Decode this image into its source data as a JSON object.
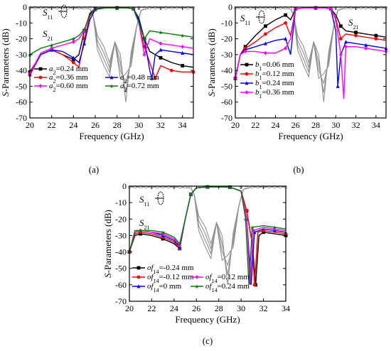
{
  "chart_data": [
    {
      "type": "line",
      "panel_label": "(a)",
      "xlabel": "Frequency (GHz)",
      "ylabel": "S-Parameters (dB)",
      "xlim": [
        20,
        35
      ],
      "ylim": [
        -70,
        0
      ],
      "xticks": [
        "20",
        "22",
        "24",
        "26",
        "28",
        "30",
        "32",
        "34"
      ],
      "yticks": [
        "0",
        "-10",
        "-20",
        "-30",
        "-40",
        "-50",
        "-60",
        "-70"
      ],
      "annotations": [
        "S11",
        "S21"
      ],
      "legend": [
        "a2=0.24 mm",
        "a2=0.36 mm",
        "a2=0.48 mm",
        "a2=0.60 mm",
        "a2=0.72 mm"
      ],
      "series": [
        {
          "name": "a2=0.24 mm",
          "color": "#000000",
          "marker": "square",
          "x": [
            20,
            21,
            22,
            23,
            24,
            24.5,
            25,
            25.5,
            26,
            27,
            28,
            29,
            29.5,
            30,
            30.5,
            31,
            32,
            33,
            34,
            35
          ],
          "y": [
            -41,
            -30,
            -27,
            -30,
            -33,
            -30,
            -15,
            -4,
            -0.8,
            -0.5,
            -0.5,
            -0.6,
            -1,
            -7,
            -20,
            -28,
            -32,
            -35,
            -37,
            -38
          ]
        },
        {
          "name": "a2=0.36 mm",
          "color": "#ff0000",
          "marker": "circle",
          "x": [
            20,
            21,
            22,
            23,
            24,
            24.5,
            25,
            25.5,
            26,
            27,
            28,
            29,
            29.5,
            30,
            30.5,
            31,
            31.5,
            32,
            33,
            34,
            35
          ],
          "y": [
            -43,
            -30,
            -27,
            -30,
            -35,
            -38,
            -20,
            -6,
            -1,
            -0.5,
            -0.5,
            -0.6,
            -1,
            -10,
            -25,
            -35,
            -45,
            -37,
            -40,
            -41,
            -41
          ]
        },
        {
          "name": "a2=0.48 mm",
          "color": "#0000ff",
          "marker": "triangle",
          "x": [
            20,
            21,
            22,
            23,
            24,
            24.5,
            25,
            25.5,
            26,
            27,
            28,
            29,
            29.5,
            30,
            30.5,
            31,
            31.2,
            31.5,
            32,
            33,
            34,
            35
          ],
          "y": [
            -42,
            -30,
            -27,
            -28,
            -32,
            -35,
            -23,
            -8,
            -1.5,
            -0.5,
            -0.5,
            -0.6,
            -1,
            -8,
            -20,
            -40,
            -45,
            -30,
            -27,
            -28,
            -29,
            -30
          ]
        },
        {
          "name": "a2=0.60 mm",
          "color": "#ff00ff",
          "marker": "diamond",
          "x": [
            20,
            21,
            22,
            23,
            24,
            24.5,
            25,
            25.5,
            26,
            27,
            28,
            29,
            29.5,
            30,
            30.5,
            31,
            32,
            33,
            34,
            35
          ],
          "y": [
            -42,
            -29,
            -26,
            -24,
            -22,
            -20,
            -15,
            -5,
            -1,
            -0.5,
            -0.5,
            -0.6,
            -1,
            -10,
            -30,
            -20,
            -23,
            -24,
            -25,
            -26
          ]
        },
        {
          "name": "a2=0.72 mm",
          "color": "#008000",
          "marker": "star",
          "x": [
            20,
            21,
            22,
            23,
            24,
            24.5,
            25,
            25.5,
            26,
            27,
            28,
            29,
            29.5,
            30,
            30.5,
            31,
            32,
            33,
            34,
            35
          ],
          "y": [
            -30,
            -26,
            -24,
            -22,
            -20,
            -18,
            -14,
            -5,
            -1,
            -0.5,
            -0.5,
            -0.6,
            -1,
            -10,
            -20,
            -15,
            -16,
            -17,
            -18,
            -19
          ]
        }
      ]
    },
    {
      "type": "line",
      "panel_label": "(b)",
      "xlabel": "Frequency (GHz)",
      "ylabel": "S-Parameters (dB)",
      "xlim": [
        20,
        35
      ],
      "ylim": [
        -70,
        0
      ],
      "xticks": [
        "20",
        "22",
        "24",
        "26",
        "28",
        "30",
        "32",
        "34"
      ],
      "yticks": [
        "0",
        "-10",
        "-20",
        "-30",
        "-40",
        "-50",
        "-60",
        "-70"
      ],
      "annotations": [
        "S11",
        "S21"
      ],
      "legend": [
        "b1=0.06 mm",
        "b1=0.12 mm",
        "b1=0.24 mm",
        "b1=0.36 mm"
      ],
      "series": [
        {
          "name": "b1=0.06 mm",
          "color": "#000000",
          "marker": "square",
          "x": [
            20,
            20.5,
            21,
            22,
            23,
            24,
            25,
            25.5,
            26,
            27,
            28,
            29,
            29.5,
            30,
            30.5,
            31,
            32,
            33,
            34,
            35
          ],
          "y": [
            -45,
            -30,
            -25,
            -18,
            -12,
            -8,
            -5,
            -8,
            -1,
            -0.5,
            -0.5,
            -0.6,
            -1,
            -5,
            -12,
            -15,
            -16,
            -17,
            -18,
            -19
          ]
        },
        {
          "name": "b1=0.12 mm",
          "color": "#ff0000",
          "marker": "circle",
          "x": [
            20,
            20.5,
            21,
            22,
            23,
            24,
            25,
            25.5,
            26,
            27,
            28,
            29,
            29.5,
            30,
            30.5,
            31,
            32,
            33,
            34,
            35
          ],
          "y": [
            -45,
            -30,
            -26,
            -22,
            -17,
            -13,
            -10,
            -18,
            -1,
            -0.5,
            -0.5,
            -0.6,
            -1,
            -7,
            -20,
            -17,
            -18,
            -19,
            -20,
            -21
          ]
        },
        {
          "name": "b1=0.24 mm",
          "color": "#0000ff",
          "marker": "triangle",
          "x": [
            20,
            20.5,
            21,
            22,
            23,
            24,
            25,
            25.5,
            26,
            27,
            28,
            29,
            29.5,
            30,
            30.2,
            30.5,
            31,
            32,
            33,
            34,
            35
          ],
          "y": [
            -45,
            -30,
            -27,
            -25,
            -23,
            -21,
            -20,
            -30,
            -1,
            -0.5,
            -0.5,
            -0.6,
            -1,
            -15,
            -50,
            -30,
            -22,
            -23,
            -24,
            -25,
            -26
          ]
        },
        {
          "name": "b1=0.36 mm",
          "color": "#ff00ff",
          "marker": "diamond",
          "x": [
            20,
            20.5,
            21,
            22,
            23,
            24,
            25,
            25.5,
            26,
            27,
            28,
            29,
            29.5,
            30,
            30.5,
            30.8,
            31,
            32,
            33,
            34,
            35
          ],
          "y": [
            -45,
            -30,
            -28,
            -28,
            -29,
            -29,
            -26,
            -20,
            -1,
            -0.5,
            -0.5,
            -0.6,
            -1,
            -8,
            -30,
            -58,
            -25,
            -25,
            -26,
            -27,
            -28
          ]
        }
      ]
    },
    {
      "type": "line",
      "panel_label": "(c)",
      "xlabel": "Frequency (GHz)",
      "ylabel": "S-Parameters (dB)",
      "xlim": [
        20,
        34
      ],
      "ylim": [
        -70,
        0
      ],
      "xticks": [
        "20",
        "22",
        "24",
        "26",
        "28",
        "30",
        "32",
        "34"
      ],
      "yticks": [
        "0",
        "-10",
        "-20",
        "-30",
        "-40",
        "-50",
        "-60",
        "-70"
      ],
      "annotations": [
        "S11",
        "S21"
      ],
      "legend": [
        "of14=-0.24 mm",
        "of14=-0.12 mm",
        "of14=0 mm",
        "of14=0.12 mm",
        "of14=0.24 mm"
      ],
      "series": [
        {
          "name": "of14=-0.24 mm",
          "color": "#000000",
          "marker": "square",
          "x": [
            20,
            20.5,
            21,
            22,
            23,
            24,
            24.5,
            25,
            25.5,
            26,
            27,
            28,
            29,
            30,
            30.5,
            31,
            31.3,
            31.6,
            32,
            33,
            34
          ],
          "y": [
            -40,
            -30,
            -29,
            -30,
            -32,
            -35,
            -38,
            -20,
            -5,
            -1,
            -0.5,
            -0.5,
            -0.6,
            -3,
            -15,
            -35,
            -60,
            -30,
            -28,
            -29,
            -30
          ]
        },
        {
          "name": "of14=-0.12 mm",
          "color": "#ff0000",
          "marker": "circle",
          "x": [
            20,
            20.5,
            21,
            22,
            23,
            24,
            24.5,
            25,
            25.5,
            26,
            27,
            28,
            29,
            30,
            30.5,
            31,
            31.2,
            31.5,
            32,
            33,
            34
          ],
          "y": [
            -40,
            -29,
            -28,
            -29,
            -31,
            -34,
            -38,
            -20,
            -5,
            -1,
            -0.5,
            -0.5,
            -0.6,
            -3,
            -15,
            -35,
            -60,
            -28,
            -27,
            -28,
            -29
          ]
        },
        {
          "name": "of14=0 mm",
          "color": "#0000ff",
          "marker": "triangle",
          "x": [
            20,
            20.5,
            21,
            22,
            23,
            24,
            24.5,
            25,
            25.5,
            26,
            27,
            28,
            29,
            30,
            30.5,
            30.9,
            31.2,
            32,
            33,
            34
          ],
          "y": [
            -40,
            -28,
            -27,
            -28,
            -30,
            -33,
            -37,
            -20,
            -5,
            -1,
            -0.5,
            -0.5,
            -0.6,
            -3,
            -20,
            -60,
            -28,
            -26,
            -27,
            -28
          ]
        },
        {
          "name": "of14=0.12 mm",
          "color": "#ff00ff",
          "marker": "diamond",
          "x": [
            20,
            20.5,
            21,
            22,
            23,
            24,
            24.5,
            25,
            25.5,
            26,
            27,
            28,
            29,
            30,
            30.5,
            30.8,
            31.1,
            32,
            33,
            34
          ],
          "y": [
            -40,
            -28,
            -27,
            -28,
            -29,
            -32,
            -36,
            -20,
            -5,
            -1,
            -0.5,
            -0.5,
            -0.6,
            -3,
            -20,
            -60,
            -27,
            -25,
            -26,
            -27
          ]
        },
        {
          "name": "of14=0.24 mm",
          "color": "#008000",
          "marker": "star",
          "x": [
            20,
            20.5,
            21,
            22,
            23,
            24,
            24.5,
            25,
            25.5,
            26,
            27,
            28,
            29,
            30,
            30.4,
            30.7,
            31,
            32,
            33,
            34
          ],
          "y": [
            -40,
            -27,
            -27,
            -27,
            -28,
            -31,
            -35,
            -20,
            -5,
            -1,
            -0.5,
            -0.5,
            -0.6,
            -3,
            -20,
            -60,
            -25,
            -24,
            -25,
            -26
          ]
        }
      ]
    }
  ],
  "captions": {
    "a": "(a)",
    "b": "(b)",
    "c": "(c)"
  }
}
